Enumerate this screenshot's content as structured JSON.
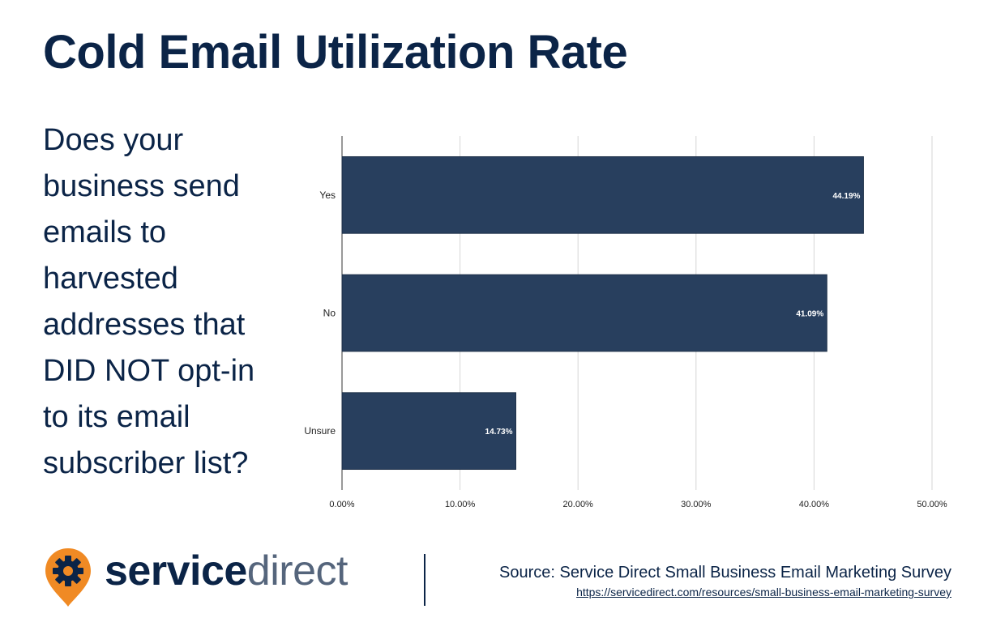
{
  "title": "Cold Email Utilization Rate",
  "question": "Does your business send emails to harvested addresses that DID NOT opt-in to its email subscriber list?",
  "chart_data": {
    "type": "bar",
    "orientation": "horizontal",
    "categories": [
      "Yes",
      "No",
      "Unsure"
    ],
    "values": [
      44.19,
      41.09,
      14.73
    ],
    "data_labels": [
      "44.19%",
      "41.09%",
      "14.73%"
    ],
    "x_ticks": [
      "0.00%",
      "10.00%",
      "20.00%",
      "30.00%",
      "40.00%",
      "50.00%"
    ],
    "xlim": [
      0,
      50
    ],
    "grid": true,
    "bar_color": "#283f5e"
  },
  "footer": {
    "logo_service": "service",
    "logo_direct": "direct",
    "logo_icon": "gear-pin-icon",
    "source_text": "Source: Service Direct Small Business Email Marketing Survey",
    "source_url": "https://servicedirect.com/resources/small-business-email-marketing-survey"
  },
  "colors": {
    "navy": "#0b2447",
    "orange": "#f08a24",
    "gray": "#55657c"
  }
}
